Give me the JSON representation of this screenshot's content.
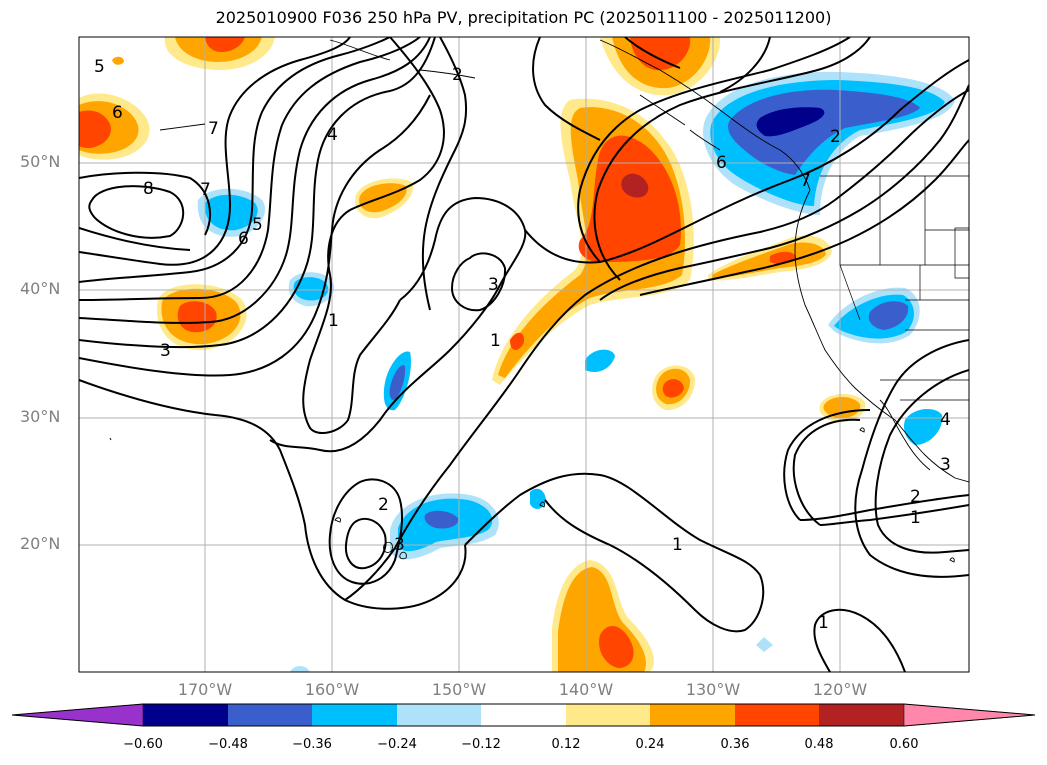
{
  "title": "2025010900 F036 250 hPa PV, precipitation PC (2025011100 - 2025011200)",
  "map": {
    "lat_labels": [
      "50°N",
      "40°N",
      "30°N",
      "20°N"
    ],
    "lon_labels": [
      "170°W",
      "160°W",
      "150°W",
      "140°W",
      "130°W",
      "120°W"
    ],
    "contour_labels": [
      "5",
      "6",
      "7",
      "8",
      "7",
      "6",
      "5",
      "4",
      "3",
      "2",
      "1",
      "3",
      "2",
      "3",
      "1",
      "1",
      "1",
      "2",
      "6",
      "7",
      "3",
      "4",
      "1",
      "2",
      "1"
    ]
  },
  "colorbar": {
    "ticks": [
      "−0.60",
      "−0.48",
      "−0.36",
      "−0.24",
      "−0.12",
      "0.12",
      "0.24",
      "0.36",
      "0.48",
      "0.60"
    ],
    "colors": [
      "#9932cc",
      "#00008b",
      "#3a5fcd",
      "#00bfff",
      "#aee2fa",
      "#ffffff",
      "#ffe98a",
      "#ffa500",
      "#ff4500",
      "#b22222",
      "#ff87ab"
    ]
  }
}
